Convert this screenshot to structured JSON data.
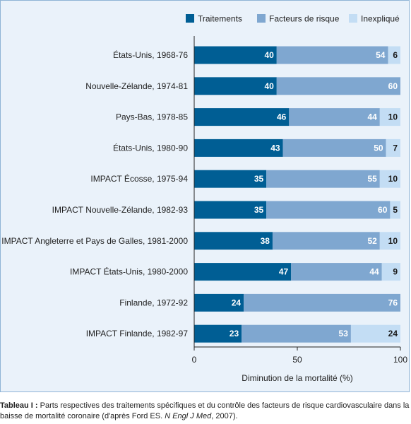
{
  "chart_data": {
    "type": "bar",
    "orientation": "horizontal",
    "stacked": true,
    "categories": [
      "États-Unis, 1968-76",
      "Nouvelle-Zélande, 1974-81",
      "Pays-Bas, 1978-85",
      "États-Unis, 1980-90",
      "IMPACT Écosse, 1975-94",
      "IMPACT Nouvelle-Zélande, 1982-93",
      "IMPACT Angleterre et Pays de Galles, 1981-2000",
      "IMPACT États-Unis, 1980-2000",
      "Finlande, 1972-92",
      "IMPACT Finlande, 1982-97"
    ],
    "series": [
      {
        "name": "Traitements",
        "color": "#005e94",
        "label_color": "#ffffff",
        "values": [
          40,
          40,
          46,
          43,
          35,
          35,
          38,
          47,
          24,
          23
        ]
      },
      {
        "name": "Facteurs de risque",
        "color": "#7fa7d0",
        "label_color": "#ffffff",
        "values": [
          54,
          60,
          44,
          50,
          55,
          60,
          52,
          44,
          76,
          53
        ]
      },
      {
        "name": "Inexpliqué",
        "color": "#c3ddf4",
        "label_color": "#1a1a1a",
        "values": [
          6,
          0,
          10,
          7,
          10,
          5,
          10,
          9,
          0,
          24
        ]
      }
    ],
    "xlabel": "Diminution de la mortalité (%)",
    "xlim": [
      0,
      100
    ],
    "xticks": [
      0,
      50,
      100
    ],
    "legend_position": "top-right",
    "grid": false
  },
  "caption": {
    "label": "Tableau I :",
    "text": " Parts respectives des traitements spécifiques et du contrôle des facteurs de risque cardiovasculaire dans la baisse de mortalité coronaire (d'après Ford ES. ",
    "journal": "N Engl J Med",
    "end": ", 2007)."
  }
}
